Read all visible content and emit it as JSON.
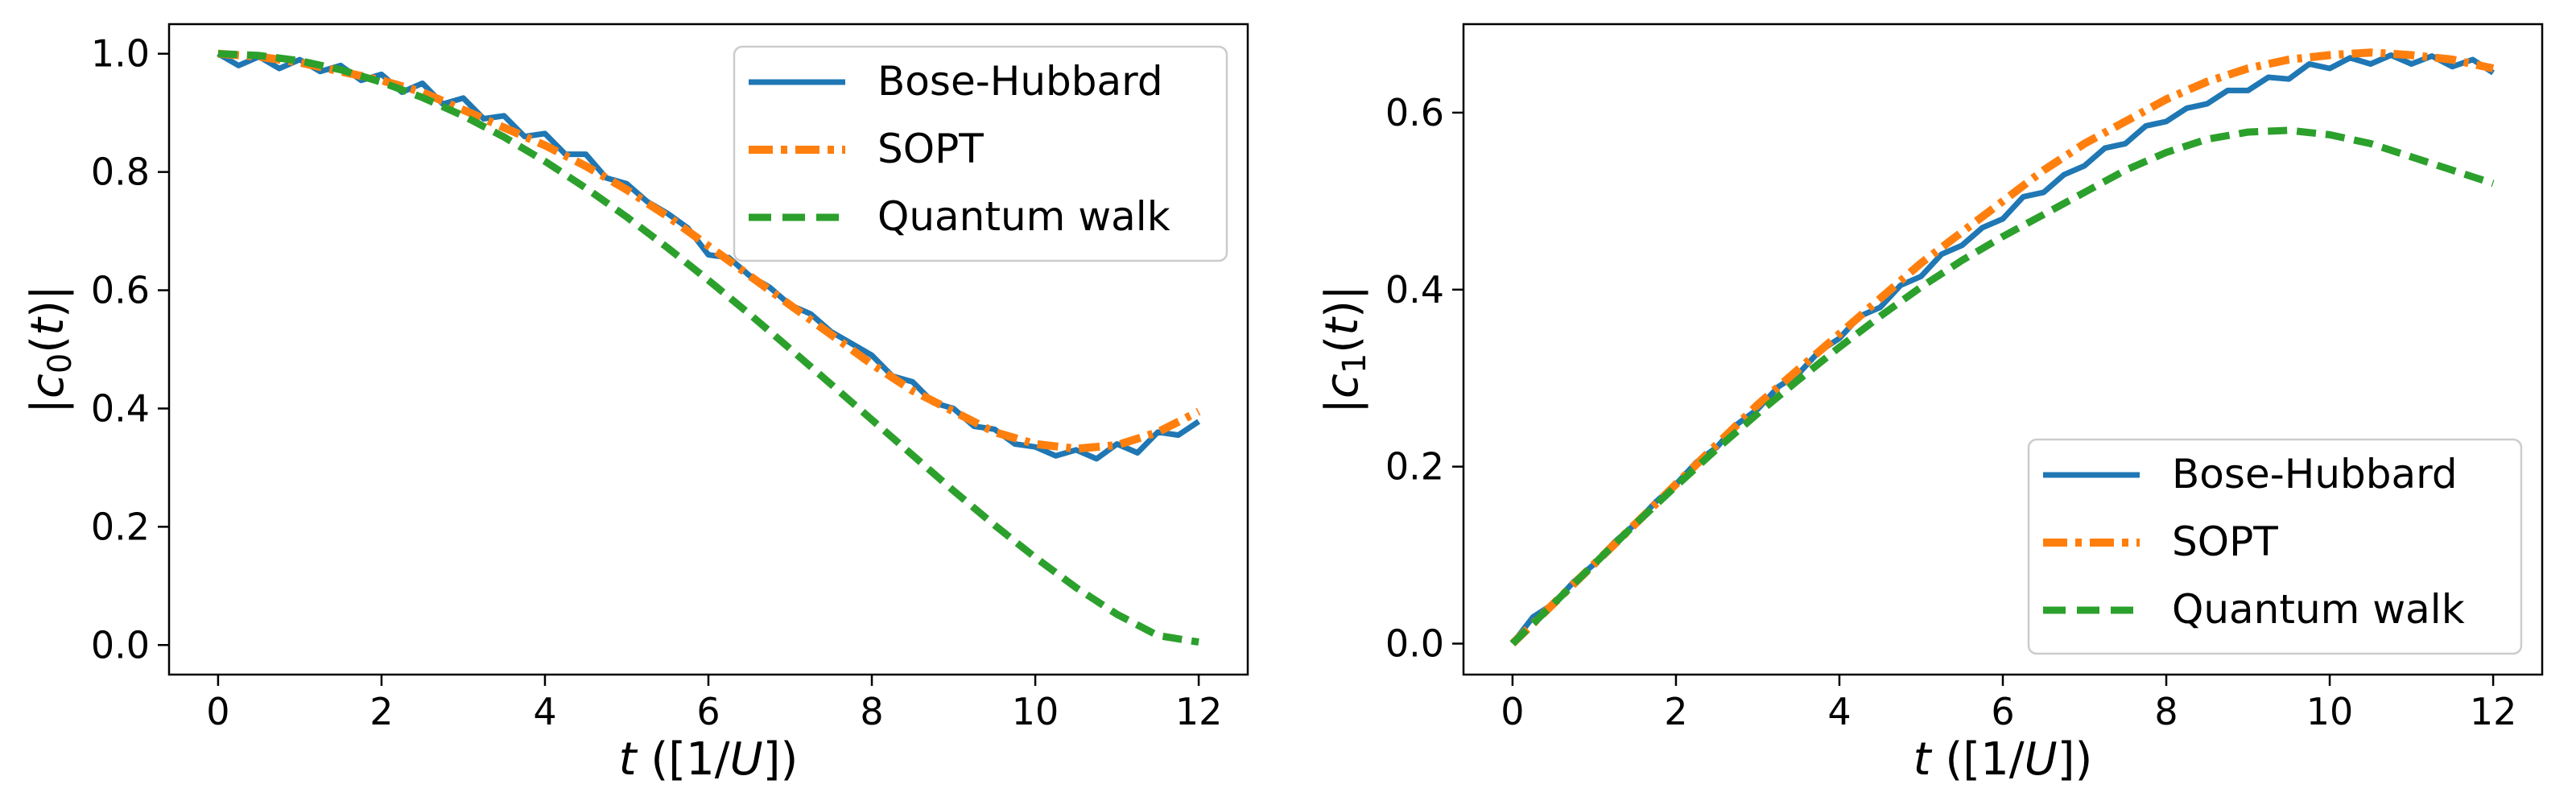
{
  "colors": {
    "bose_hubbard": "#1f77b4",
    "sopt": "#ff7f0e",
    "quantum_walk": "#2ca02c",
    "axes": "#000000",
    "legend_border": "#cccccc"
  },
  "chart_data": [
    {
      "type": "line",
      "id": "left",
      "title": "",
      "xlabel": "t ([1/U])",
      "ylabel": "|c0(t)|",
      "xlabel_parts": {
        "var": "t",
        "open": " ([1/",
        "unit": "U",
        "close": "])"
      },
      "ylabel_parts": {
        "open": "|",
        "var": "c",
        "sub": "0",
        "paren_open": "(",
        "arg": "t",
        "paren_close": ")|"
      },
      "xlim": [
        -0.6,
        12.6
      ],
      "ylim": [
        -0.05,
        1.05
      ],
      "xticks": [
        0,
        2,
        4,
        6,
        8,
        10,
        12
      ],
      "xtick_labels": [
        "0",
        "2",
        "4",
        "6",
        "8",
        "10",
        "12"
      ],
      "yticks": [
        0.0,
        0.2,
        0.4,
        0.6,
        0.8,
        1.0
      ],
      "ytick_labels": [
        "0.0",
        "0.2",
        "0.4",
        "0.6",
        "0.8",
        "1.0"
      ],
      "legend_position": "top-right",
      "series": [
        {
          "name": "Bose-Hubbard",
          "style": "solid",
          "x": [
            0,
            0.25,
            0.5,
            0.75,
            1,
            1.25,
            1.5,
            1.75,
            2,
            2.25,
            2.5,
            2.75,
            3,
            3.25,
            3.5,
            3.75,
            4,
            4.25,
            4.5,
            4.75,
            5,
            5.25,
            5.5,
            5.75,
            6,
            6.25,
            6.5,
            6.75,
            7,
            7.25,
            7.5,
            7.75,
            8,
            8.25,
            8.5,
            8.75,
            9,
            9.25,
            9.5,
            9.75,
            10,
            10.25,
            10.5,
            10.75,
            11,
            11.25,
            11.5,
            11.75,
            12
          ],
          "y": [
            1.0,
            0.98,
            0.995,
            0.975,
            0.99,
            0.97,
            0.98,
            0.955,
            0.965,
            0.935,
            0.95,
            0.915,
            0.925,
            0.89,
            0.895,
            0.86,
            0.865,
            0.83,
            0.83,
            0.79,
            0.78,
            0.75,
            0.73,
            0.705,
            0.66,
            0.655,
            0.625,
            0.605,
            0.575,
            0.56,
            0.53,
            0.51,
            0.49,
            0.455,
            0.445,
            0.41,
            0.4,
            0.37,
            0.365,
            0.34,
            0.335,
            0.32,
            0.33,
            0.315,
            0.34,
            0.325,
            0.36,
            0.355,
            0.378
          ]
        },
        {
          "name": "SOPT",
          "style": "dashdot",
          "x": [
            0,
            0.5,
            1,
            1.5,
            2,
            2.5,
            3,
            3.5,
            4,
            4.5,
            5,
            5.5,
            6,
            6.5,
            7,
            7.5,
            8,
            8.5,
            9,
            9.5,
            10,
            10.5,
            11,
            11.5,
            12
          ],
          "y": [
            1.0,
            0.995,
            0.985,
            0.97,
            0.955,
            0.935,
            0.905,
            0.875,
            0.845,
            0.81,
            0.77,
            0.725,
            0.675,
            0.625,
            0.575,
            0.525,
            0.475,
            0.43,
            0.395,
            0.36,
            0.34,
            0.332,
            0.338,
            0.36,
            0.395
          ]
        },
        {
          "name": "Quantum walk",
          "style": "dashed",
          "x": [
            0,
            0.5,
            1,
            1.5,
            2,
            2.5,
            3,
            3.5,
            4,
            4.5,
            5,
            5.5,
            6,
            6.5,
            7,
            7.5,
            8,
            8.5,
            9,
            9.5,
            10,
            10.5,
            11,
            11.5,
            12
          ],
          "y": [
            1.0,
            0.997,
            0.988,
            0.973,
            0.952,
            0.926,
            0.895,
            0.859,
            0.818,
            0.773,
            0.724,
            0.672,
            0.617,
            0.56,
            0.501,
            0.441,
            0.381,
            0.321,
            0.261,
            0.203,
            0.148,
            0.097,
            0.052,
            0.016,
            0.005
          ]
        }
      ]
    },
    {
      "type": "line",
      "id": "right",
      "title": "",
      "xlabel": "t ([1/U])",
      "ylabel": "|c1(t)|",
      "xlabel_parts": {
        "var": "t",
        "open": " ([1/",
        "unit": "U",
        "close": "])"
      },
      "ylabel_parts": {
        "open": "|",
        "var": "c",
        "sub": "1",
        "paren_open": "(",
        "arg": "t",
        "paren_close": ")|"
      },
      "xlim": [
        -0.6,
        12.6
      ],
      "ylim": [
        -0.035,
        0.7
      ],
      "xticks": [
        0,
        2,
        4,
        6,
        8,
        10,
        12
      ],
      "xtick_labels": [
        "0",
        "2",
        "4",
        "6",
        "8",
        "10",
        "12"
      ],
      "yticks": [
        0.0,
        0.2,
        0.4,
        0.6
      ],
      "ytick_labels": [
        "0.0",
        "0.2",
        "0.4",
        "0.6"
      ],
      "legend_position": "lower-right",
      "series": [
        {
          "name": "Bose-Hubbard",
          "style": "solid",
          "x": [
            0,
            0.25,
            0.5,
            0.75,
            1,
            1.25,
            1.5,
            1.75,
            2,
            2.25,
            2.5,
            2.75,
            3,
            3.25,
            3.5,
            3.75,
            4,
            4.25,
            4.5,
            4.75,
            5,
            5.25,
            5.5,
            5.75,
            6,
            6.25,
            6.5,
            6.75,
            7,
            7.25,
            7.5,
            7.75,
            8,
            8.25,
            8.5,
            8.75,
            9,
            9.25,
            9.5,
            9.75,
            10,
            10.25,
            10.5,
            10.75,
            11,
            11.25,
            11.5,
            11.75,
            12
          ],
          "y": [
            0.0,
            0.03,
            0.045,
            0.07,
            0.09,
            0.115,
            0.135,
            0.16,
            0.18,
            0.205,
            0.222,
            0.248,
            0.265,
            0.29,
            0.305,
            0.33,
            0.345,
            0.37,
            0.38,
            0.405,
            0.415,
            0.44,
            0.45,
            0.47,
            0.48,
            0.505,
            0.51,
            0.53,
            0.54,
            0.56,
            0.565,
            0.585,
            0.59,
            0.605,
            0.61,
            0.625,
            0.625,
            0.64,
            0.638,
            0.655,
            0.65,
            0.662,
            0.655,
            0.665,
            0.655,
            0.664,
            0.652,
            0.66,
            0.645
          ]
        },
        {
          "name": "SOPT",
          "style": "dashdot",
          "x": [
            0,
            0.5,
            1,
            1.5,
            2,
            2.5,
            3,
            3.5,
            4,
            4.5,
            5,
            5.5,
            6,
            6.5,
            7,
            7.5,
            8,
            8.5,
            9,
            9.5,
            10,
            10.5,
            11,
            11.5,
            12
          ],
          "y": [
            0.0,
            0.045,
            0.09,
            0.135,
            0.18,
            0.225,
            0.27,
            0.31,
            0.35,
            0.39,
            0.43,
            0.465,
            0.5,
            0.535,
            0.565,
            0.59,
            0.615,
            0.635,
            0.65,
            0.66,
            0.665,
            0.668,
            0.665,
            0.66,
            0.65
          ]
        },
        {
          "name": "Quantum walk",
          "style": "dashed",
          "x": [
            0,
            0.5,
            1,
            1.5,
            2,
            2.5,
            3,
            3.5,
            4,
            4.5,
            5,
            5.5,
            6,
            6.5,
            7,
            7.5,
            8,
            8.5,
            9,
            9.5,
            10,
            10.5,
            11,
            11.5,
            12
          ],
          "y": [
            0.0,
            0.045,
            0.09,
            0.135,
            0.178,
            0.22,
            0.26,
            0.298,
            0.335,
            0.37,
            0.403,
            0.433,
            0.46,
            0.485,
            0.51,
            0.535,
            0.555,
            0.57,
            0.578,
            0.58,
            0.575,
            0.565,
            0.55,
            0.535,
            0.52
          ]
        }
      ]
    }
  ]
}
